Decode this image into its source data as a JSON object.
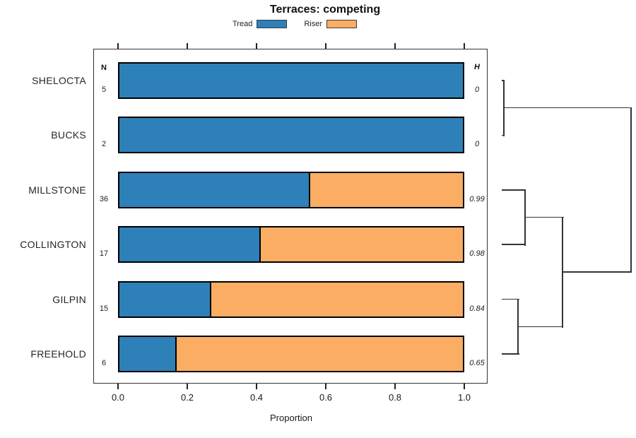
{
  "title": "Terraces: competing",
  "legend": {
    "items": [
      {
        "label": "Tread",
        "color": "#2E80B9"
      },
      {
        "label": "Riser",
        "color": "#FBAD63"
      }
    ]
  },
  "columns": {
    "n_header": "N",
    "h_header": "H"
  },
  "x_axis": {
    "label": "Proportion",
    "tick_labels": [
      "0.0",
      "0.2",
      "0.4",
      "0.6",
      "0.8",
      "1.0"
    ]
  },
  "chart_data": {
    "type": "bar",
    "orientation": "horizontal",
    "stacked": true,
    "title": "Terraces: competing",
    "xlabel": "Proportion",
    "xlim": [
      0,
      1
    ],
    "x_ticks": [
      0,
      0.2,
      0.4,
      0.6,
      0.8,
      1
    ],
    "grid": false,
    "legend_position": "top",
    "series_names": [
      "Tread",
      "Riser"
    ],
    "colors": {
      "Tread": "#2E80B9",
      "Riser": "#FBAD63"
    },
    "rows": [
      {
        "category": "SHELOCTA",
        "N": 5,
        "H": "0",
        "Tread": 1.0,
        "Riser": 0.0
      },
      {
        "category": "BUCKS",
        "N": 2,
        "H": "0",
        "Tread": 1.0,
        "Riser": 0.0
      },
      {
        "category": "MILLSTONE",
        "N": 36,
        "H": "0.99",
        "Tread": 0.556,
        "Riser": 0.444
      },
      {
        "category": "COLLINGTON",
        "N": 17,
        "H": "0.98",
        "Tread": 0.412,
        "Riser": 0.588
      },
      {
        "category": "GILPIN",
        "N": 15,
        "H": "0.84",
        "Tread": 0.267,
        "Riser": 0.733
      },
      {
        "category": "FREEHOLD",
        "N": 6,
        "H": "0.65",
        "Tread": 0.167,
        "Riser": 0.833
      }
    ],
    "dendrogram": {
      "leaves": [
        "SHELOCTA",
        "BUCKS",
        "MILLSTONE",
        "COLLINGTON",
        "GILPIN",
        "FREEHOLD"
      ],
      "merges": [
        {
          "a": "L0",
          "b": "L1",
          "height": 0.016
        },
        {
          "a": "L2",
          "b": "L3",
          "height": 0.18
        },
        {
          "a": "L4",
          "b": "L5",
          "height": 0.126
        },
        {
          "a": "M1",
          "b": "M2",
          "height": 0.47
        },
        {
          "a": "M0",
          "b": "M3",
          "height": 1.0
        }
      ]
    }
  }
}
